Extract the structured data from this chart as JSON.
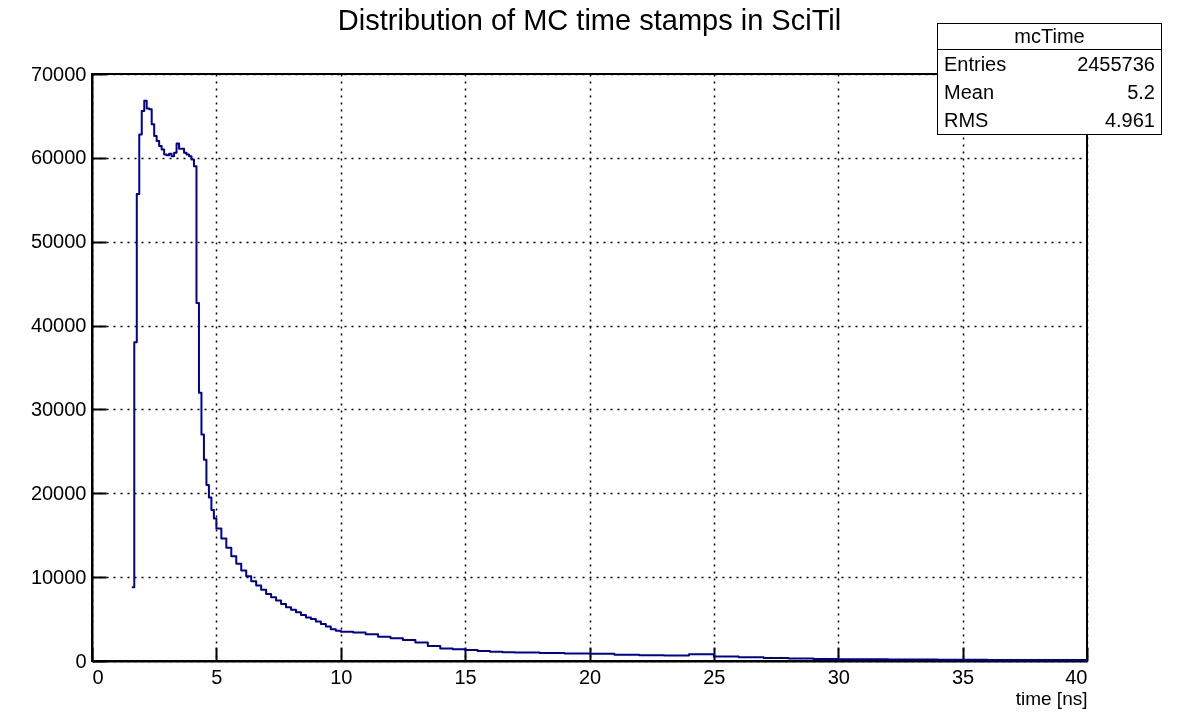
{
  "chart_data": {
    "type": "histogram",
    "title": "Distribution of MC time stamps in SciTil",
    "xlabel": "time [ns]",
    "bins": [
      1.6,
      1.7,
      1.8,
      1.9,
      2.0,
      2.1,
      2.2,
      2.3,
      2.4,
      2.5,
      2.6,
      2.7,
      2.8,
      2.9,
      3.0,
      3.1,
      3.2,
      3.3,
      3.4,
      3.5,
      3.6,
      3.7,
      3.8,
      3.9,
      4.0,
      4.1,
      4.2,
      4.3,
      4.4,
      4.5,
      4.6,
      4.7,
      4.8,
      4.9,
      5.0,
      5.2,
      5.4,
      5.6,
      5.8,
      6.0,
      6.2,
      6.4,
      6.6,
      6.8,
      7.0,
      7.2,
      7.4,
      7.6,
      7.8,
      8.0,
      8.2,
      8.4,
      8.6,
      8.8,
      9.0,
      9.2,
      9.4,
      9.6,
      9.8,
      10.0,
      10.5,
      11,
      11.5,
      12,
      12.5,
      13,
      13.5,
      14,
      14.5,
      15,
      15.5,
      16,
      16.5,
      17,
      17.5,
      18,
      19,
      20,
      21,
      22,
      23,
      24,
      25,
      26,
      27,
      28,
      29,
      30,
      32,
      34,
      36,
      38,
      40
    ],
    "values": [
      8800,
      38000,
      55700,
      62800,
      65600,
      66800,
      65900,
      65800,
      64000,
      62600,
      62000,
      61400,
      61000,
      60400,
      60300,
      60500,
      60200,
      60600,
      61700,
      61100,
      61100,
      60600,
      60400,
      60200,
      59800,
      59000,
      42700,
      32000,
      27000,
      24000,
      21000,
      19500,
      18000,
      17000,
      15800,
      14600,
      13500,
      12500,
      11600,
      10800,
      10100,
      9500,
      9000,
      8500,
      8000,
      7600,
      7200,
      6800,
      6400,
      6100,
      5800,
      5500,
      5200,
      5000,
      4700,
      4400,
      4100,
      3800,
      3600,
      3500,
      3400,
      3200,
      2900,
      2700,
      2500,
      2200,
      1800,
      1500,
      1400,
      1300,
      1200,
      1100,
      1050,
      1000,
      1000,
      950,
      900,
      850,
      750,
      700,
      650,
      800,
      550,
      450,
      350,
      300,
      250,
      200,
      180,
      150,
      130,
      110
    ],
    "color": "#000099",
    "xlim": [
      0,
      40
    ],
    "xticks": [
      0,
      5,
      10,
      15,
      20,
      25,
      30,
      35,
      40
    ],
    "ylim": [
      0,
      70000
    ],
    "yticks": [
      0,
      10000,
      20000,
      30000,
      40000,
      50000,
      60000,
      70000
    ],
    "grid": true,
    "annotations": [
      "mcTime",
      "Entries",
      "2455736",
      "Mean",
      "5.2",
      "RMS",
      "4.961"
    ]
  }
}
